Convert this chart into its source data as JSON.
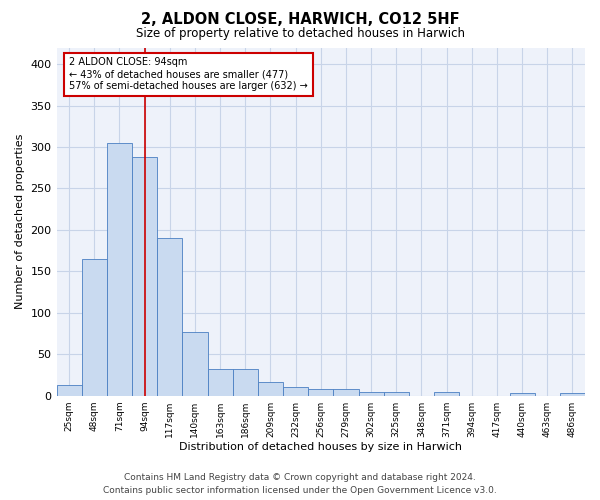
{
  "title": "2, ALDON CLOSE, HARWICH, CO12 5HF",
  "subtitle": "Size of property relative to detached houses in Harwich",
  "xlabel": "Distribution of detached houses by size in Harwich",
  "ylabel": "Number of detached properties",
  "categories": [
    "25sqm",
    "48sqm",
    "71sqm",
    "94sqm",
    "117sqm",
    "140sqm",
    "163sqm",
    "186sqm",
    "209sqm",
    "232sqm",
    "256sqm",
    "279sqm",
    "302sqm",
    "325sqm",
    "348sqm",
    "371sqm",
    "394sqm",
    "417sqm",
    "440sqm",
    "463sqm",
    "486sqm"
  ],
  "values": [
    13,
    165,
    305,
    288,
    190,
    77,
    32,
    32,
    17,
    10,
    8,
    8,
    5,
    5,
    0,
    5,
    0,
    0,
    3,
    0,
    3
  ],
  "bar_color": "#c9daf0",
  "bar_edge_color": "#4a7fc2",
  "vline_x": 3,
  "vline_color": "#cc0000",
  "annotation_line1": "2 ALDON CLOSE: 94sqm",
  "annotation_line2": "← 43% of detached houses are smaller (477)",
  "annotation_line3": "57% of semi-detached houses are larger (632) →",
  "annotation_box_color": "#ffffff",
  "annotation_box_edge": "#cc0000",
  "grid_color": "#c8d4e8",
  "background_color": "#eef2fa",
  "ylim": [
    0,
    420
  ],
  "yticks": [
    0,
    50,
    100,
    150,
    200,
    250,
    300,
    350,
    400
  ],
  "footer_line1": "Contains HM Land Registry data © Crown copyright and database right 2024.",
  "footer_line2": "Contains public sector information licensed under the Open Government Licence v3.0."
}
